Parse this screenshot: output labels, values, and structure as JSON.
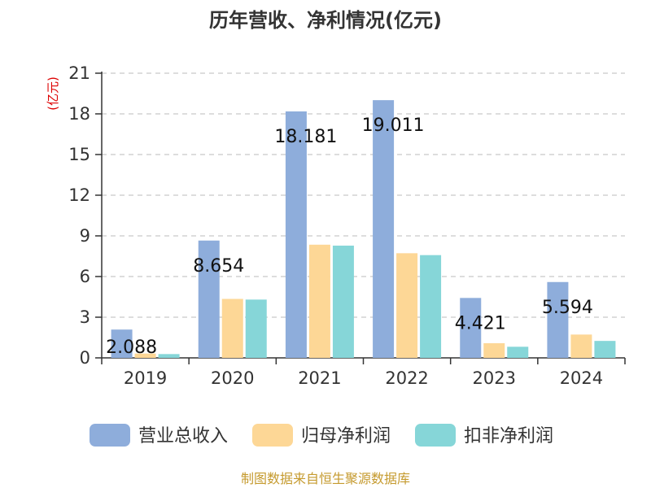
{
  "chart_data": {
    "type": "bar",
    "title": "历年营收、净利情况(亿元)",
    "unit_label": "(亿元)",
    "categories": [
      "2019",
      "2020",
      "2021",
      "2022",
      "2023",
      "2024"
    ],
    "series": [
      {
        "name": "营业总收入",
        "color": "#8EADDB",
        "values": [
          2.088,
          8.654,
          18.181,
          19.011,
          4.421,
          5.594
        ]
      },
      {
        "name": "归母净利润",
        "color": "#FDD796",
        "values": [
          0.32,
          4.35,
          8.35,
          7.72,
          1.08,
          1.72
        ]
      },
      {
        "name": "扣非净利润",
        "color": "#86D6D8",
        "values": [
          0.28,
          4.3,
          8.28,
          7.58,
          0.82,
          1.25
        ]
      }
    ],
    "data_labels": [
      "2.088",
      "8.654",
      "18.181",
      "19.011",
      "4.421",
      "5.594"
    ],
    "ylim": [
      0,
      21
    ],
    "yticks": [
      0,
      3,
      6,
      9,
      12,
      15,
      18,
      21
    ],
    "grid": true,
    "legend_position": "bottom"
  },
  "footer": {
    "source": "制图数据来自恒生聚源数据库"
  },
  "colors": {
    "unit": "#DD0000",
    "source": "#C59A2E",
    "axis": "#333333",
    "grid": "#BBBBBB"
  }
}
